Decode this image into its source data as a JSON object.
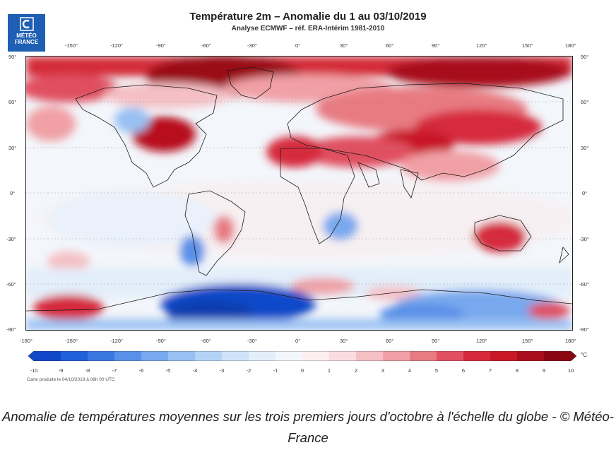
{
  "map": {
    "title": "Température 2m – Anomalie du 1 au 03/10/2019",
    "subtitle": "Analyse ECMWF – réf. ERA-Intérim 1981-2010",
    "logo_text": [
      "MÉTÉO",
      "FRANCE"
    ],
    "lon_ticks": [
      "-180°",
      "-150°",
      "-120°",
      "-90°",
      "-60°",
      "-30°",
      "0°",
      "30°",
      "60°",
      "90°",
      "120°",
      "150°",
      "180°"
    ],
    "lon_ticks_top": [
      "-150°",
      "-120°",
      "-90°",
      "-60°",
      "-30°",
      "0°",
      "30°",
      "60°",
      "90°",
      "120°",
      "150°",
      "180°"
    ],
    "lat_ticks": [
      "90°",
      "60°",
      "30°",
      "0°",
      "-30°",
      "-60°",
      "-90°"
    ],
    "colorbar": {
      "ticks": [
        "-10",
        "-9",
        "-8",
        "-7",
        "-6",
        "-5",
        "-4",
        "-3",
        "-2",
        "-1",
        "0",
        "1",
        "2",
        "3",
        "4",
        "5",
        "6",
        "7",
        "8",
        "9",
        "10"
      ],
      "unit": "°C",
      "colors": [
        "#1048c8",
        "#2060d8",
        "#3a78e0",
        "#5a90e8",
        "#78a8ee",
        "#98c0f2",
        "#b4d4f6",
        "#cfe3f8",
        "#e2eefa",
        "#f2f7fc",
        "#fbeff0",
        "#f8dcdf",
        "#f4c0c4",
        "#f0a0a6",
        "#e87a82",
        "#e05060",
        "#d62a3c",
        "#c81828",
        "#a80e1c",
        "#8a0612"
      ]
    },
    "production_note": "Carte produite le 04/10/2019 à 08h 00 UTC"
  },
  "caption": "Anomalie de températures moyennes sur les trois premiers jours d'octobre à l'échelle du globe - © Météo-France"
}
